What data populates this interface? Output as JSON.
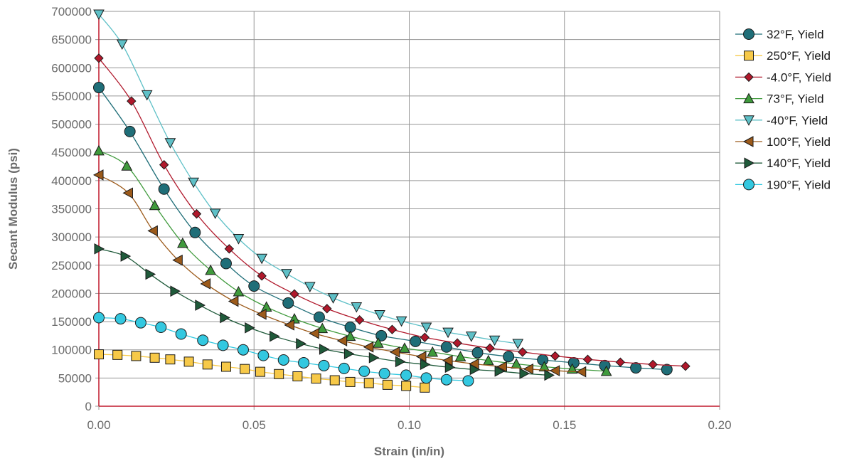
{
  "chart_data": {
    "type": "scatter",
    "xlabel": "Strain (in/in)",
    "ylabel": "Secant Modulus (psi)",
    "xlim": [
      0,
      0.2
    ],
    "ylim": [
      0,
      700000
    ],
    "x_ticks": [
      "0.00",
      "0.05",
      "0.10",
      "0.15",
      "0.20"
    ],
    "y_ticks": [
      "0",
      "50000",
      "100000",
      "150000",
      "200000",
      "250000",
      "300000",
      "350000",
      "400000",
      "450000",
      "500000",
      "550000",
      "600000",
      "650000",
      "700000"
    ],
    "grid": true,
    "legend_position": "right",
    "series": [
      {
        "name": "32°F, Yield",
        "marker": "circle",
        "color": "#1f6e78",
        "x": [
          0,
          0.01,
          0.021,
          0.031,
          0.041,
          0.05,
          0.061,
          0.071,
          0.081,
          0.091,
          0.102,
          0.112,
          0.122,
          0.132,
          0.143,
          0.153,
          0.163,
          0.173,
          0.183
        ],
        "y": [
          565000,
          487000,
          385000,
          308000,
          253000,
          213000,
          183000,
          158000,
          140000,
          125000,
          115000,
          105000,
          95000,
          88000,
          82000,
          77000,
          72000,
          68000,
          65000
        ]
      },
      {
        "name": "250°F, Yield",
        "marker": "square",
        "color": "#f7c948",
        "x": [
          0,
          0.006,
          0.012,
          0.018,
          0.023,
          0.029,
          0.035,
          0.041,
          0.047,
          0.052,
          0.058,
          0.064,
          0.07,
          0.076,
          0.081,
          0.087,
          0.093,
          0.099,
          0.105
        ],
        "y": [
          92000,
          91000,
          89000,
          86000,
          83000,
          79000,
          74000,
          70000,
          66000,
          61000,
          57000,
          53000,
          49000,
          46000,
          43000,
          41000,
          38000,
          36000,
          33000
        ]
      },
      {
        "name": "-4.0°F, Yield",
        "marker": "diamond",
        "color": "#b0182b",
        "x": [
          0,
          0.0105,
          0.021,
          0.0315,
          0.042,
          0.0525,
          0.063,
          0.0735,
          0.084,
          0.0945,
          0.105,
          0.1155,
          0.126,
          0.1365,
          0.147,
          0.1575,
          0.168,
          0.1785,
          0.189
        ],
        "y": [
          617000,
          541000,
          428000,
          341000,
          279000,
          231000,
          199000,
          173000,
          153000,
          136000,
          122000,
          112000,
          103000,
          96000,
          89000,
          83000,
          78000,
          74000,
          71000
        ]
      },
      {
        "name": "73°F, Yield",
        "marker": "triangle-up",
        "color": "#3f9a3c",
        "x": [
          0,
          0.009,
          0.018,
          0.027,
          0.036,
          0.045,
          0.054,
          0.063,
          0.072,
          0.081,
          0.09,
          0.0985,
          0.1075,
          0.1165,
          0.1255,
          0.1345,
          0.1435,
          0.1525,
          0.1635
        ],
        "y": [
          453000,
          426000,
          356000,
          289000,
          241000,
          203000,
          176000,
          155000,
          138000,
          124000,
          112000,
          103000,
          96000,
          88000,
          81000,
          75000,
          70000,
          66000,
          62000
        ]
      },
      {
        "name": "-40°F, Yield",
        "marker": "triangle-down",
        "color": "#5ec0c7",
        "x": [
          0,
          0.0075,
          0.0155,
          0.023,
          0.0305,
          0.0375,
          0.045,
          0.0525,
          0.0605,
          0.068,
          0.0755,
          0.083,
          0.0905,
          0.0975,
          0.1055,
          0.1125,
          0.12,
          0.1275,
          0.135
        ],
        "y": [
          695000,
          642000,
          552000,
          467000,
          397000,
          342000,
          297000,
          262000,
          235000,
          212000,
          192000,
          176000,
          162000,
          151000,
          140000,
          131000,
          124000,
          117000,
          111000
        ]
      },
      {
        "name": "100°F, Yield",
        "marker": "triangle-left",
        "color": "#9c5a1a",
        "x": [
          0,
          0.0095,
          0.0175,
          0.0255,
          0.0345,
          0.0435,
          0.0525,
          0.0615,
          0.0695,
          0.0785,
          0.087,
          0.0955,
          0.104,
          0.1125,
          0.121,
          0.13,
          0.1385,
          0.147,
          0.1555
        ],
        "y": [
          410000,
          378000,
          311000,
          259000,
          217000,
          186000,
          163000,
          144000,
          129000,
          116000,
          105000,
          96000,
          88000,
          81000,
          75000,
          70000,
          66000,
          63000,
          61000
        ]
      },
      {
        "name": "140°F, Yield",
        "marker": "triangle-right",
        "color": "#1f5a3a",
        "x": [
          0,
          0.0085,
          0.0165,
          0.0245,
          0.0325,
          0.0405,
          0.0485,
          0.0565,
          0.065,
          0.0725,
          0.0805,
          0.0885,
          0.097,
          0.105,
          0.113,
          0.121,
          0.129,
          0.137,
          0.145
        ],
        "y": [
          279000,
          266000,
          234000,
          204000,
          179000,
          157000,
          139000,
          124000,
          111000,
          101000,
          93000,
          86000,
          79000,
          74000,
          69000,
          65000,
          62000,
          58000,
          55000
        ]
      },
      {
        "name": "190°F, Yield",
        "marker": "circle",
        "color": "#33c8e0",
        "x": [
          0,
          0.007,
          0.0135,
          0.02,
          0.0265,
          0.0335,
          0.04,
          0.0465,
          0.053,
          0.0595,
          0.066,
          0.0725,
          0.079,
          0.0855,
          0.092,
          0.099,
          0.1055,
          0.112,
          0.119
        ],
        "y": [
          157000,
          155000,
          148000,
          140000,
          128000,
          117000,
          108000,
          100000,
          90000,
          82000,
          77000,
          72000,
          67000,
          62000,
          58000,
          55000,
          50000,
          47000,
          45000
        ]
      }
    ]
  },
  "colors": {
    "grid": "#969696",
    "axis": "#c0182b",
    "text": "#6b6b6b"
  }
}
